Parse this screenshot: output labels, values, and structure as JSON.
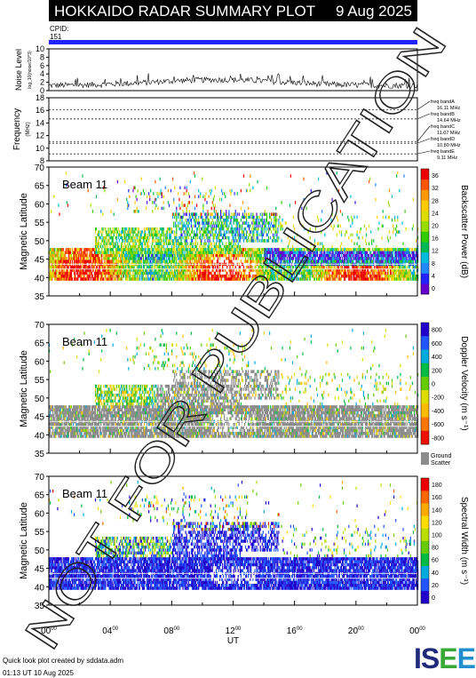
{
  "header": {
    "title": "HOKKAIDO RADAR SUMMARY PLOT",
    "date": "9 Aug 2025",
    "cpid_label": "CPID:",
    "cpid_value": "151"
  },
  "noise_panel": {
    "ylabel": "Noise Level",
    "ylabel_sub": "log_10(noise/10^3)",
    "yticks": [
      "0",
      "2",
      "4",
      "6",
      "8",
      "10"
    ],
    "ylim": [
      0,
      10
    ]
  },
  "freq_panel": {
    "ylabel": "Frequency",
    "ylabel_unit": "(MHz)",
    "yticks": [
      "8",
      "10",
      "12",
      "14",
      "16",
      "18"
    ],
    "ylim": [
      8,
      18
    ],
    "bands": [
      {
        "name": "freq bandA",
        "freq": "16.11 MHz",
        "value": 16.11
      },
      {
        "name": "freq bandB",
        "freq": "14.64 MHz",
        "value": 14.64
      },
      {
        "name": "freq bandC",
        "freq": "11.07 MHz",
        "value": 11.07
      },
      {
        "name": "freq bandD",
        "freq": "10.80 MHz",
        "value": 10.8
      },
      {
        "name": "freq bandE",
        "freq": "9.11 MHz",
        "value": 9.11
      }
    ]
  },
  "beam_panels": [
    {
      "beam": "Beam 11",
      "ylabel": "Magnetic Latitude",
      "yticks": [
        "35",
        "40",
        "45",
        "50",
        "55",
        "60",
        "65",
        "70"
      ],
      "colorbar_label": "Backscatter Power (dB)",
      "colorbar_ticks": [
        "0",
        "4",
        "8",
        "12",
        "16",
        "20",
        "24",
        "28",
        "32",
        "36"
      ],
      "colors": [
        "#6600cc",
        "#2222ff",
        "#2288ff",
        "#00bbdd",
        "#00bb55",
        "#33cc00",
        "#99dd00",
        "#dddd00",
        "#ffcc00",
        "#ff9900",
        "#ff5500",
        "#ee0000"
      ]
    },
    {
      "beam": "Beam 11",
      "ylabel": "Magnetic Latitude",
      "yticks": [
        "35",
        "40",
        "45",
        "50",
        "55",
        "60",
        "65",
        "70"
      ],
      "colorbar_label": "Doppler Velocity (m s⁻¹)",
      "colorbar_ticks": [
        "800",
        "600",
        "400",
        "200",
        "0",
        "-200",
        "-400",
        "-600",
        "-800"
      ],
      "ground_scatter_label": "Ground Scatter",
      "colors": [
        "#2200cc",
        "#2255ff",
        "#00aadd",
        "#00bb44",
        "#66cc00",
        "#dddd00",
        "#ffbb00",
        "#ff7700",
        "#ee1100"
      ]
    },
    {
      "beam": "Beam 11",
      "ylabel": "Magnetic Latitude",
      "yticks": [
        "35",
        "40",
        "45",
        "50",
        "55",
        "60",
        "65",
        "70"
      ],
      "colorbar_label": "Spectral Width (m s⁻¹)",
      "colorbar_ticks": [
        "0",
        "20",
        "40",
        "60",
        "80",
        "100",
        "120",
        "140",
        "160",
        "180"
      ],
      "colors": [
        "#2200cc",
        "#2255ff",
        "#00aadd",
        "#00bb44",
        "#66cc00",
        "#bbdd00",
        "#ffdd00",
        "#ffaa00",
        "#ff6600",
        "#ee0000"
      ]
    }
  ],
  "x_axis": {
    "label": "UT",
    "ticks": [
      {
        "hh": "00",
        "mm": "00"
      },
      {
        "hh": "04",
        "mm": "00"
      },
      {
        "hh": "08",
        "mm": "00"
      },
      {
        "hh": "12",
        "mm": "00"
      },
      {
        "hh": "16",
        "mm": "00"
      },
      {
        "hh": "20",
        "mm": "00"
      },
      {
        "hh": "00",
        "mm": "00"
      }
    ]
  },
  "footer": {
    "line1": "Quick look plot created by sddata.adm",
    "line2": "01:13 UT 10 Aug 2025",
    "logo": "ISEE"
  },
  "watermark": "NOT FOR PUBLICATION",
  "chart_data": {
    "type": "heatmap",
    "title": "HOKKAIDO RADAR SUMMARY PLOT",
    "xlabel": "UT",
    "xlim_hours": [
      0,
      24
    ],
    "ylabel": "Magnetic Latitude",
    "ylim": [
      35,
      70
    ],
    "series": [
      {
        "name": "Backscatter Power (dB)",
        "range": [
          0,
          36
        ],
        "regions": [
          {
            "ut": [
              0,
              24
            ],
            "lat": [
              39,
              47
            ],
            "value": 20
          },
          {
            "ut": [
              3,
              12
            ],
            "lat": [
              46,
              53
            ],
            "value": 18
          },
          {
            "ut": [
              8,
              15
            ],
            "lat": [
              50,
              56
            ],
            "value": 14
          },
          {
            "ut": [
              14,
              24
            ],
            "lat": [
              44,
              48
            ],
            "value": 4
          }
        ]
      },
      {
        "name": "Doppler Velocity (m s⁻¹)",
        "range": [
          -800,
          800
        ],
        "ground_scatter": [
          {
            "ut": [
              0,
              24
            ],
            "lat": [
              39,
              47
            ]
          },
          {
            "ut": [
              7,
              15
            ],
            "lat": [
              47,
              57
            ]
          }
        ]
      },
      {
        "name": "Spectral Width (m s⁻¹)",
        "range": [
          0,
          180
        ],
        "regions": [
          {
            "ut": [
              0,
              24
            ],
            "lat": [
              39,
              47
            ],
            "value": 10
          },
          {
            "ut": [
              3,
              12
            ],
            "lat": [
              46,
              53
            ],
            "value": 15
          },
          {
            "ut": [
              8,
              15
            ],
            "lat": [
              50,
              56
            ],
            "value": 20
          }
        ]
      }
    ],
    "noise": {
      "ut_range": [
        0,
        24
      ],
      "typical_level": 2
    }
  }
}
